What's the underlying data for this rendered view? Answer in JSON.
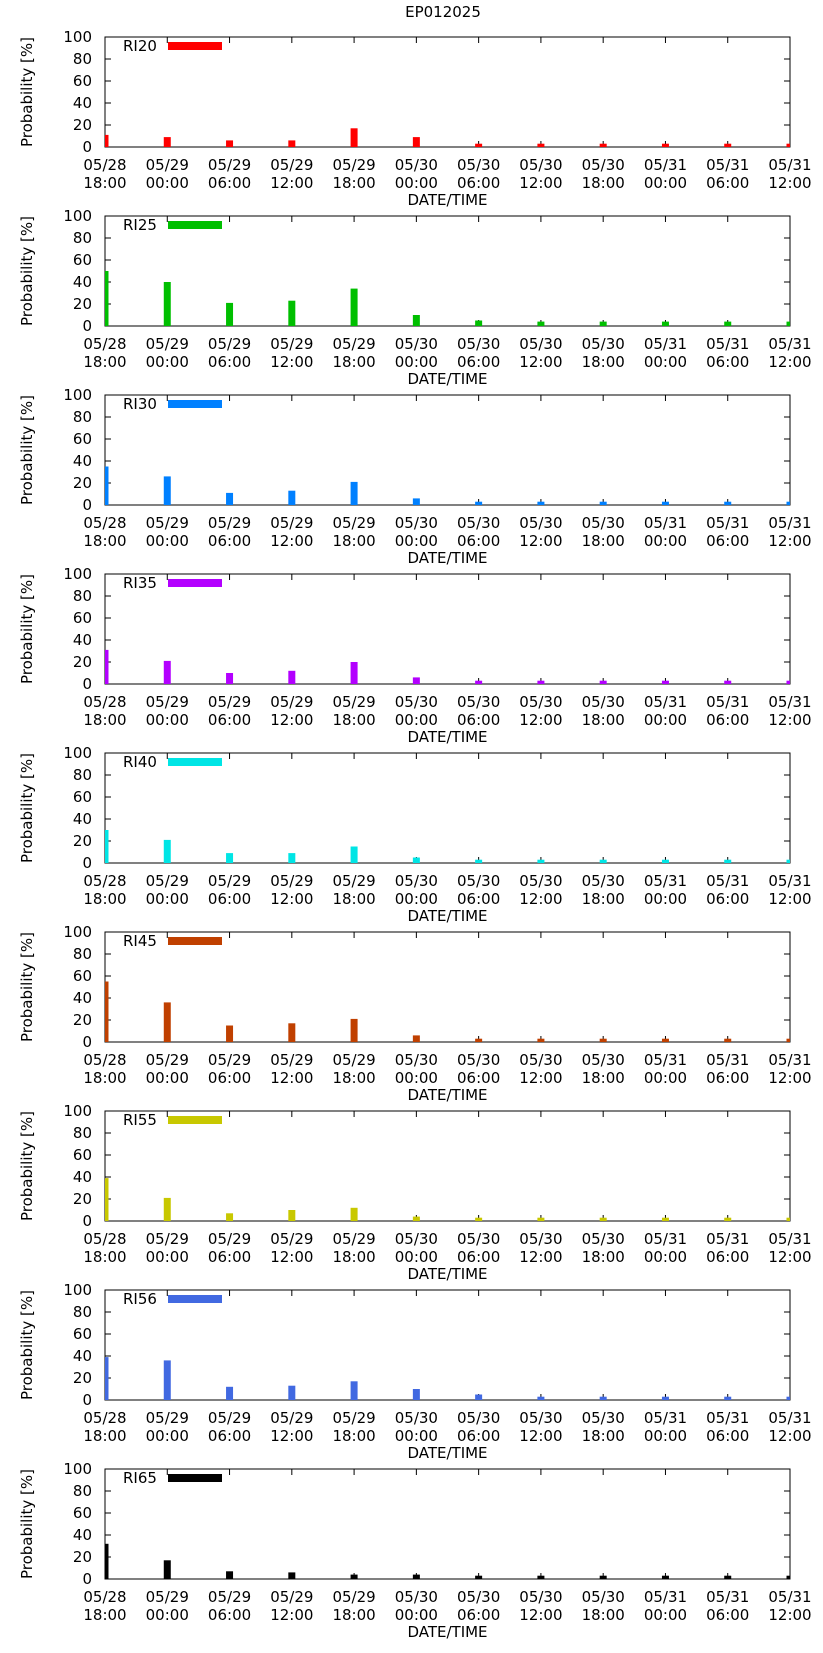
{
  "title": "EP012025",
  "chart_data": [
    {
      "type": "bar",
      "name": "RI20",
      "color": "#ff0000",
      "xlabel": "DATE/TIME",
      "ylabel": "Probability [%]",
      "ylim": [
        0,
        100
      ],
      "y_ticks": [
        0,
        20,
        40,
        60,
        80,
        100
      ],
      "x_tick_labels": [
        [
          "05/28",
          "18:00"
        ],
        [
          "05/29",
          "00:00"
        ],
        [
          "05/29",
          "06:00"
        ],
        [
          "05/29",
          "12:00"
        ],
        [
          "05/29",
          "18:00"
        ],
        [
          "05/30",
          "00:00"
        ],
        [
          "05/30",
          "06:00"
        ],
        [
          "05/30",
          "12:00"
        ],
        [
          "05/30",
          "18:00"
        ],
        [
          "05/31",
          "00:00"
        ],
        [
          "05/31",
          "06:00"
        ],
        [
          "05/31",
          "12:00"
        ]
      ],
      "values": [
        11,
        9,
        6,
        6,
        17,
        9,
        3,
        3,
        3,
        3,
        3,
        3
      ]
    },
    {
      "type": "bar",
      "name": "RI25",
      "color": "#00bf00",
      "xlabel": "DATE/TIME",
      "ylabel": "Probability [%]",
      "ylim": [
        0,
        100
      ],
      "y_ticks": [
        0,
        20,
        40,
        60,
        80,
        100
      ],
      "x_tick_labels": [
        [
          "05/28",
          "18:00"
        ],
        [
          "05/29",
          "00:00"
        ],
        [
          "05/29",
          "06:00"
        ],
        [
          "05/29",
          "12:00"
        ],
        [
          "05/29",
          "18:00"
        ],
        [
          "05/30",
          "00:00"
        ],
        [
          "05/30",
          "06:00"
        ],
        [
          "05/30",
          "12:00"
        ],
        [
          "05/30",
          "18:00"
        ],
        [
          "05/31",
          "00:00"
        ],
        [
          "05/31",
          "06:00"
        ],
        [
          "05/31",
          "12:00"
        ]
      ],
      "values": [
        50,
        40,
        21,
        23,
        34,
        10,
        5,
        4,
        4,
        4,
        4,
        4
      ]
    },
    {
      "type": "bar",
      "name": "RI30",
      "color": "#0080ff",
      "xlabel": "DATE/TIME",
      "ylabel": "Probability [%]",
      "ylim": [
        0,
        100
      ],
      "y_ticks": [
        0,
        20,
        40,
        60,
        80,
        100
      ],
      "x_tick_labels": [
        [
          "05/28",
          "18:00"
        ],
        [
          "05/29",
          "00:00"
        ],
        [
          "05/29",
          "06:00"
        ],
        [
          "05/29",
          "12:00"
        ],
        [
          "05/29",
          "18:00"
        ],
        [
          "05/30",
          "00:00"
        ],
        [
          "05/30",
          "06:00"
        ],
        [
          "05/30",
          "12:00"
        ],
        [
          "05/30",
          "18:00"
        ],
        [
          "05/31",
          "00:00"
        ],
        [
          "05/31",
          "06:00"
        ],
        [
          "05/31",
          "12:00"
        ]
      ],
      "values": [
        35,
        26,
        11,
        13,
        21,
        6,
        3,
        3,
        3,
        3,
        3,
        3
      ]
    },
    {
      "type": "bar",
      "name": "RI35",
      "color": "#b300ff",
      "xlabel": "DATE/TIME",
      "ylabel": "Probability [%]",
      "ylim": [
        0,
        100
      ],
      "y_ticks": [
        0,
        20,
        40,
        60,
        80,
        100
      ],
      "x_tick_labels": [
        [
          "05/28",
          "18:00"
        ],
        [
          "05/29",
          "00:00"
        ],
        [
          "05/29",
          "06:00"
        ],
        [
          "05/29",
          "12:00"
        ],
        [
          "05/29",
          "18:00"
        ],
        [
          "05/30",
          "00:00"
        ],
        [
          "05/30",
          "06:00"
        ],
        [
          "05/30",
          "12:00"
        ],
        [
          "05/30",
          "18:00"
        ],
        [
          "05/31",
          "00:00"
        ],
        [
          "05/31",
          "06:00"
        ],
        [
          "05/31",
          "12:00"
        ]
      ],
      "values": [
        31,
        21,
        10,
        12,
        20,
        6,
        3,
        3,
        3,
        3,
        3,
        3
      ]
    },
    {
      "type": "bar",
      "name": "RI40",
      "color": "#00e5e5",
      "xlabel": "DATE/TIME",
      "ylabel": "Probability [%]",
      "ylim": [
        0,
        100
      ],
      "y_ticks": [
        0,
        20,
        40,
        60,
        80,
        100
      ],
      "x_tick_labels": [
        [
          "05/28",
          "18:00"
        ],
        [
          "05/29",
          "00:00"
        ],
        [
          "05/29",
          "06:00"
        ],
        [
          "05/29",
          "12:00"
        ],
        [
          "05/29",
          "18:00"
        ],
        [
          "05/30",
          "00:00"
        ],
        [
          "05/30",
          "06:00"
        ],
        [
          "05/30",
          "12:00"
        ],
        [
          "05/30",
          "18:00"
        ],
        [
          "05/31",
          "00:00"
        ],
        [
          "05/31",
          "06:00"
        ],
        [
          "05/31",
          "12:00"
        ]
      ],
      "values": [
        30,
        21,
        9,
        9,
        15,
        5,
        3,
        3,
        3,
        3,
        3,
        3
      ]
    },
    {
      "type": "bar",
      "name": "RI45",
      "color": "#c04000",
      "xlabel": "DATE/TIME",
      "ylabel": "Probability [%]",
      "ylim": [
        0,
        100
      ],
      "y_ticks": [
        0,
        20,
        40,
        60,
        80,
        100
      ],
      "x_tick_labels": [
        [
          "05/28",
          "18:00"
        ],
        [
          "05/29",
          "00:00"
        ],
        [
          "05/29",
          "06:00"
        ],
        [
          "05/29",
          "12:00"
        ],
        [
          "05/29",
          "18:00"
        ],
        [
          "05/30",
          "00:00"
        ],
        [
          "05/30",
          "06:00"
        ],
        [
          "05/30",
          "12:00"
        ],
        [
          "05/30",
          "18:00"
        ],
        [
          "05/31",
          "00:00"
        ],
        [
          "05/31",
          "06:00"
        ],
        [
          "05/31",
          "12:00"
        ]
      ],
      "values": [
        55,
        36,
        15,
        17,
        21,
        6,
        3,
        3,
        3,
        3,
        3,
        3
      ]
    },
    {
      "type": "bar",
      "name": "RI55",
      "color": "#c8c800",
      "xlabel": "DATE/TIME",
      "ylabel": "Probability [%]",
      "ylim": [
        0,
        100
      ],
      "y_ticks": [
        0,
        20,
        40,
        60,
        80,
        100
      ],
      "x_tick_labels": [
        [
          "05/28",
          "18:00"
        ],
        [
          "05/29",
          "00:00"
        ],
        [
          "05/29",
          "06:00"
        ],
        [
          "05/29",
          "12:00"
        ],
        [
          "05/29",
          "18:00"
        ],
        [
          "05/30",
          "00:00"
        ],
        [
          "05/30",
          "06:00"
        ],
        [
          "05/30",
          "12:00"
        ],
        [
          "05/30",
          "18:00"
        ],
        [
          "05/31",
          "00:00"
        ],
        [
          "05/31",
          "06:00"
        ],
        [
          "05/31",
          "12:00"
        ]
      ],
      "values": [
        39,
        21,
        7,
        10,
        12,
        4,
        3,
        3,
        3,
        3,
        3,
        3
      ]
    },
    {
      "type": "bar",
      "name": "RI56",
      "color": "#4169e1",
      "xlabel": "DATE/TIME",
      "ylabel": "Probability [%]",
      "ylim": [
        0,
        100
      ],
      "y_ticks": [
        0,
        20,
        40,
        60,
        80,
        100
      ],
      "x_tick_labels": [
        [
          "05/28",
          "18:00"
        ],
        [
          "05/29",
          "00:00"
        ],
        [
          "05/29",
          "06:00"
        ],
        [
          "05/29",
          "12:00"
        ],
        [
          "05/29",
          "18:00"
        ],
        [
          "05/30",
          "00:00"
        ],
        [
          "05/30",
          "06:00"
        ],
        [
          "05/30",
          "12:00"
        ],
        [
          "05/30",
          "18:00"
        ],
        [
          "05/31",
          "00:00"
        ],
        [
          "05/31",
          "06:00"
        ],
        [
          "05/31",
          "12:00"
        ]
      ],
      "values": [
        39,
        36,
        12,
        13,
        17,
        10,
        5,
        3,
        3,
        3,
        3,
        3
      ]
    },
    {
      "type": "bar",
      "name": "RI65",
      "color": "#000000",
      "xlabel": "DATE/TIME",
      "ylabel": "Probability [%]",
      "ylim": [
        0,
        100
      ],
      "y_ticks": [
        0,
        20,
        40,
        60,
        80,
        100
      ],
      "x_tick_labels": [
        [
          "05/28",
          "18:00"
        ],
        [
          "05/29",
          "00:00"
        ],
        [
          "05/29",
          "06:00"
        ],
        [
          "05/29",
          "12:00"
        ],
        [
          "05/29",
          "18:00"
        ],
        [
          "05/30",
          "00:00"
        ],
        [
          "05/30",
          "06:00"
        ],
        [
          "05/30",
          "12:00"
        ],
        [
          "05/30",
          "18:00"
        ],
        [
          "05/31",
          "00:00"
        ],
        [
          "05/31",
          "06:00"
        ],
        [
          "05/31",
          "12:00"
        ]
      ],
      "values": [
        32,
        17,
        7,
        6,
        4,
        4,
        3,
        3,
        3,
        3,
        3,
        3
      ]
    }
  ]
}
